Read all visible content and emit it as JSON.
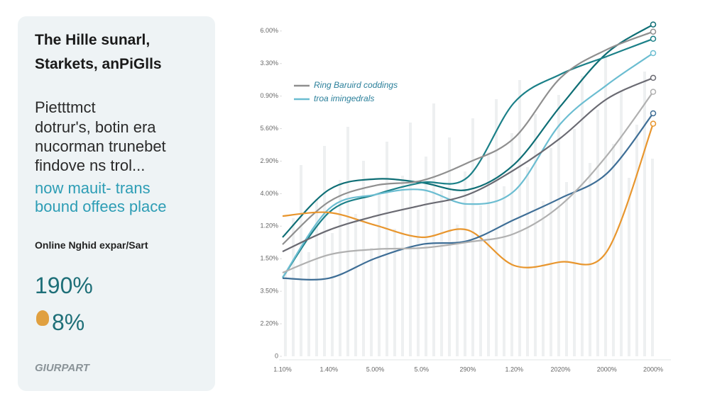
{
  "panel": {
    "title": [
      "The Hille sunarl,",
      "Starkets, anPiGlls"
    ],
    "body": [
      "Pietttmct",
      "dotrur's, botin era",
      "nucorman trunebet",
      "findove ns trol..."
    ],
    "highlight": [
      "now mauit- trans",
      "bound offees place"
    ],
    "subheading": "Online Nghid expar/Sart",
    "stat_1": "190%",
    "stat_2": "8%",
    "brand": "GIURPART"
  },
  "chart_data": {
    "type": "line",
    "categories": [
      "1.10%",
      "1.40%",
      "5.00%",
      "5.0%",
      "290%",
      "1.20%",
      "2020%",
      "2000%",
      "2000%"
    ],
    "ylim": [
      0,
      10.3
    ],
    "yticks": [
      {
        "value": 10,
        "label": "6.00%"
      },
      {
        "value": 9,
        "label": "3.30%"
      },
      {
        "value": 8,
        "label": "0.90%"
      },
      {
        "value": 7,
        "label": "5.60%"
      },
      {
        "value": 6,
        "label": "2.90%"
      },
      {
        "value": 5,
        "label": "4.00%"
      },
      {
        "value": 4,
        "label": "1.20%"
      },
      {
        "value": 3,
        "label": "1.50%"
      },
      {
        "value": 2,
        "label": "3.50%"
      },
      {
        "value": 1,
        "label": "2.20%"
      },
      0
    ],
    "legend": "upper left",
    "series": [
      {
        "color": "#0e6e75",
        "values": [
          3.66,
          5.12,
          5.45,
          5.34,
          5.12,
          5.9,
          7.69,
          9.32,
          10.2
        ]
      },
      {
        "color": "#1b8088",
        "values": [
          2.42,
          4.42,
          4.97,
          5.34,
          5.51,
          7.8,
          8.67,
          9.22,
          9.76
        ]
      },
      {
        "name": "Ring Baruird coddings",
        "color": "#8f8f8f",
        "values": [
          3.44,
          4.75,
          5.25,
          5.4,
          5.95,
          6.71,
          8.56,
          9.43,
          9.98
        ]
      },
      {
        "name": "troa imingedrals",
        "color": "#6bbdd1",
        "values": [
          2.42,
          4.53,
          4.97,
          5.12,
          4.68,
          5.08,
          7.15,
          8.34,
          9.32
        ]
      },
      {
        "color": "#e8962e",
        "values": [
          4.31,
          4.42,
          4.03,
          3.66,
          3.88,
          2.79,
          2.9,
          3.22,
          7.15
        ]
      },
      {
        "color": "#3e6e96",
        "values": [
          2.4,
          2.4,
          3.01,
          3.44,
          3.55,
          4.2,
          4.86,
          5.62,
          7.47
        ]
      },
      {
        "color": "#6a6a72",
        "values": [
          3.22,
          3.88,
          4.31,
          4.64,
          4.97,
          5.73,
          6.71,
          7.91,
          8.56
        ]
      },
      {
        "color": "#b0b0b0",
        "values": [
          2.57,
          3.12,
          3.29,
          3.33,
          3.51,
          3.77,
          4.64,
          6.17,
          8.13
        ]
      }
    ]
  }
}
